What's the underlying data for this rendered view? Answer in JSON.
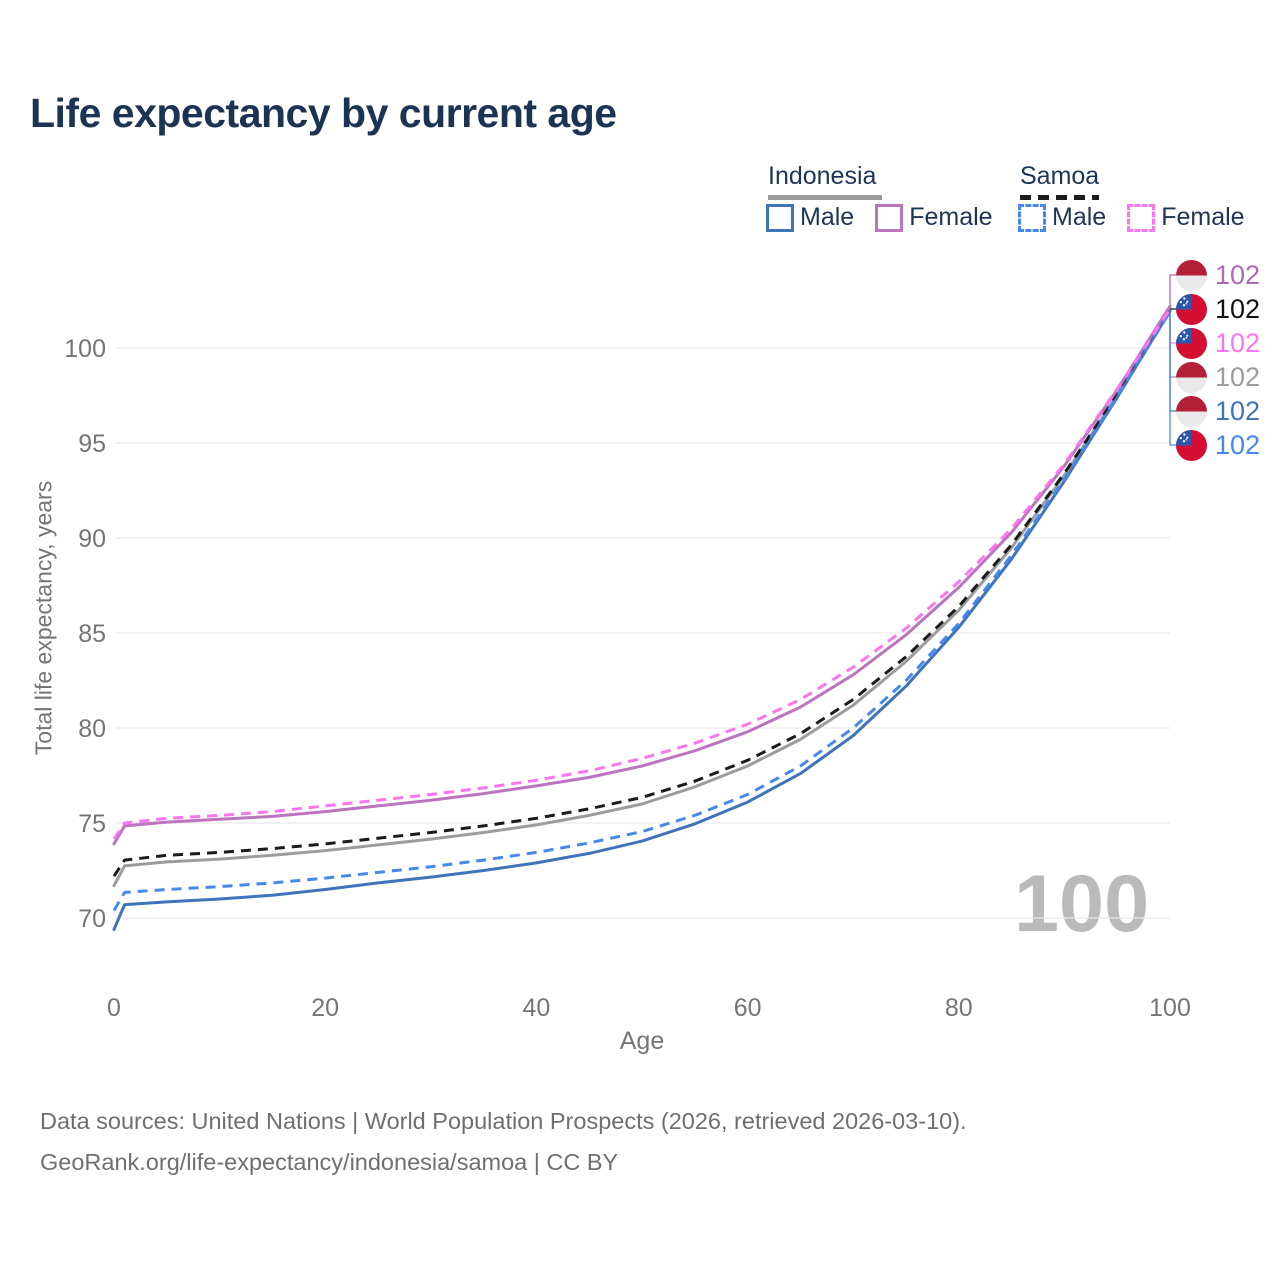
{
  "title": "Life expectancy by current age",
  "watermark": "100",
  "legend": {
    "groups": [
      {
        "name": "Indonesia",
        "style": "solid",
        "items": [
          {
            "label": "Male"
          },
          {
            "label": "Female"
          }
        ]
      },
      {
        "name": "Samoa",
        "style": "dashed",
        "items": [
          {
            "label": "Male"
          },
          {
            "label": "Female"
          }
        ]
      }
    ]
  },
  "colors": {
    "title": "#1c3454",
    "text_navy": "#1d3557",
    "axis_text": "#757575",
    "gridline": "#e9e9e9",
    "footer_text": "#6f6f6f",
    "watermark": "#bababa",
    "indonesia_male": "#3f74ba",
    "indonesia_female": "#bb74be",
    "indonesia_both": "#9c9c9c",
    "samoa_male": "#4589ec",
    "samoa_female": "#fd74f0",
    "samoa_both": "#1b1b1b",
    "flag_indonesia_red": "#b32037",
    "flag_white": "#e9e9ea",
    "flag_samoa_red": "#d40f33",
    "flag_samoa_blue": "#2a57ae"
  },
  "chart_data": {
    "type": "line",
    "title": "Life expectancy by current age",
    "xlabel": "Age",
    "ylabel": "Total life expectancy, years",
    "x_ticks": [
      0,
      20,
      40,
      60,
      80,
      100
    ],
    "y_ticks": [
      70,
      75,
      80,
      85,
      90,
      95,
      100
    ],
    "xlim": [
      0,
      100
    ],
    "ylim": [
      68.5,
      103
    ],
    "grid": "horizontal-only",
    "legend_position": "top-right",
    "ages": [
      0,
      1,
      5,
      10,
      15,
      20,
      25,
      30,
      35,
      40,
      45,
      50,
      55,
      60,
      65,
      70,
      75,
      80,
      85,
      90,
      95,
      100
    ],
    "series": [
      {
        "id": "indonesia-both",
        "name": "Indonesia (both sexes)",
        "country": "Indonesia",
        "sex": "Both",
        "dash": false,
        "color": "#9c9c9c",
        "values": [
          71.7,
          72.75,
          72.95,
          73.1,
          73.3,
          73.55,
          73.85,
          74.15,
          74.5,
          74.9,
          75.4,
          76.0,
          76.9,
          78.0,
          79.4,
          81.2,
          83.5,
          86.2,
          89.5,
          93.3,
          97.5,
          102.0
        ]
      },
      {
        "id": "samoa-both",
        "name": "Samoa (both sexes)",
        "country": "Samoa",
        "sex": "Both",
        "dash": true,
        "color": "#1b1b1b",
        "values": [
          72.2,
          73.05,
          73.3,
          73.45,
          73.65,
          73.9,
          74.2,
          74.5,
          74.85,
          75.25,
          75.75,
          76.35,
          77.2,
          78.3,
          79.7,
          81.5,
          83.75,
          86.4,
          89.65,
          93.4,
          97.55,
          102.1
        ]
      },
      {
        "id": "indonesia-male",
        "name": "Indonesia Male",
        "country": "Indonesia",
        "sex": "Male",
        "dash": false,
        "color": "#3f74ba",
        "values": [
          69.4,
          70.7,
          70.85,
          71.0,
          71.2,
          71.5,
          71.85,
          72.15,
          72.5,
          72.9,
          73.4,
          74.05,
          74.95,
          76.1,
          77.6,
          79.6,
          82.2,
          85.3,
          88.9,
          93.0,
          97.4,
          101.95
        ]
      },
      {
        "id": "samoa-male",
        "name": "Samoa Male",
        "country": "Samoa",
        "sex": "Male",
        "dash": true,
        "color": "#4589ec",
        "values": [
          70.4,
          71.35,
          71.5,
          71.65,
          71.85,
          72.1,
          72.4,
          72.7,
          73.05,
          73.45,
          73.95,
          74.55,
          75.4,
          76.5,
          78.0,
          80.0,
          82.5,
          85.5,
          89.1,
          93.1,
          97.45,
          101.9
        ]
      },
      {
        "id": "indonesia-female",
        "name": "Indonesia Female",
        "country": "Indonesia",
        "sex": "Female",
        "dash": false,
        "color": "#bb74be",
        "values": [
          73.9,
          74.85,
          75.05,
          75.2,
          75.35,
          75.6,
          75.9,
          76.2,
          76.55,
          76.95,
          77.4,
          78.0,
          78.8,
          79.8,
          81.1,
          82.8,
          84.9,
          87.4,
          90.3,
          93.8,
          97.8,
          102.2
        ]
      },
      {
        "id": "samoa-female",
        "name": "Samoa Female",
        "country": "Samoa",
        "sex": "Female",
        "dash": true,
        "color": "#fd74f0",
        "values": [
          74.15,
          75.0,
          75.25,
          75.4,
          75.6,
          75.9,
          76.2,
          76.5,
          76.85,
          77.25,
          77.75,
          78.4,
          79.2,
          80.2,
          81.5,
          83.2,
          85.25,
          87.7,
          90.5,
          93.9,
          97.85,
          102.05
        ]
      }
    ]
  },
  "end_labels": [
    {
      "id": "indonesia-female",
      "series": "Indonesia Female",
      "value": "102",
      "flag": "indonesia",
      "color": "#b168b9",
      "end_value": 102.2
    },
    {
      "id": "samoa-both",
      "series": "Samoa (both sexes)",
      "value": "102",
      "flag": "samoa",
      "color": "#111111",
      "end_value": 102.1
    },
    {
      "id": "samoa-female",
      "series": "Samoa Female",
      "value": "102",
      "flag": "samoa",
      "color": "#fd74f0",
      "end_value": 102.05
    },
    {
      "id": "indonesia-both",
      "series": "Indonesia (both sexes)",
      "value": "102",
      "flag": "indonesia",
      "color": "#9c9c9c",
      "end_value": 102.0
    },
    {
      "id": "indonesia-male",
      "series": "Indonesia Male",
      "value": "102",
      "flag": "indonesia",
      "color": "#3f74ba",
      "end_value": 101.95
    },
    {
      "id": "samoa-male",
      "series": "Samoa Male",
      "value": "102",
      "flag": "samoa",
      "color": "#4589ec",
      "end_value": 101.9
    }
  ],
  "footer": {
    "line1": "Data sources: United Nations | World Population Prospects (2026, retrieved 2026-03-10).",
    "line2": "GeoRank.org/life-expectancy/indonesia/samoa | CC BY"
  }
}
